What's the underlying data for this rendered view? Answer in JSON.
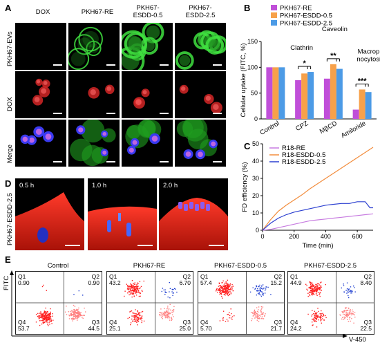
{
  "panels": {
    "A": "A",
    "B": "B",
    "C": "C",
    "D": "D",
    "E": "E"
  },
  "panelA": {
    "columns": [
      "DOX",
      "PKH67-RE",
      "PKH67-\nESDD-0.5",
      "PKH67-\nESDD-2.5"
    ],
    "rows": [
      "PKH67-EVs",
      "DOX",
      "Merge"
    ]
  },
  "panelD": {
    "side_label": "PKH67-ESDD-2.5",
    "times": [
      "0.5 h",
      "1.0 h",
      "2.0 h"
    ]
  },
  "chart_data": [
    {
      "type": "bar",
      "panel": "B",
      "categories": [
        "Control",
        "CPZ",
        "MβCD",
        "Amiloride"
      ],
      "series": [
        {
          "name": "PKH67-RE",
          "color": "#c04fd9",
          "values": [
            100,
            75,
            78,
            18
          ]
        },
        {
          "name": "PKH67-ESDD-0.5",
          "color": "#f7a14a",
          "values": [
            100,
            88,
            106,
            57
          ]
        },
        {
          "name": "PKH67-ESDD-2.5",
          "color": "#4c9be6",
          "values": [
            100,
            91,
            97,
            52
          ]
        }
      ],
      "ylabel": "Cellular uptake (FITC, %)",
      "ylim": [
        0,
        150
      ],
      "yticks": [
        0,
        50,
        100,
        150
      ],
      "annotations": [
        {
          "text": "Clathrin",
          "category": "CPZ"
        },
        {
          "text": "Caveolin",
          "category": "MβCD"
        },
        {
          "text": "Macropi-\nnocytosis",
          "category": "Amiloride"
        }
      ],
      "significance": [
        {
          "category": "CPZ",
          "stars": "*"
        },
        {
          "category": "MβCD",
          "stars": "**"
        },
        {
          "category": "Amiloride",
          "stars": "***"
        }
      ]
    },
    {
      "type": "line",
      "panel": "C",
      "xlabel": "Time (min)",
      "ylabel": "FD efficiency (%)",
      "xlim": [
        0,
        700
      ],
      "ylim": [
        0,
        50
      ],
      "xticks": [
        0,
        200,
        400,
        600
      ],
      "yticks": [
        0,
        10,
        20,
        30,
        40,
        50
      ],
      "series": [
        {
          "name": "R18-RE",
          "color": "#c77be0",
          "x": [
            0,
            50,
            100,
            150,
            200,
            250,
            300,
            350,
            400,
            450,
            500,
            550,
            600,
            650,
            700
          ],
          "y": [
            0,
            0.5,
            1.5,
            2.5,
            3.5,
            4.5,
            5.5,
            6,
            6.5,
            7,
            7.5,
            8,
            8.5,
            9,
            9.5
          ]
        },
        {
          "name": "R18-ESDD-0.5",
          "color": "#f28c3c",
          "x": [
            0,
            50,
            100,
            150,
            200,
            250,
            300,
            350,
            400,
            450,
            500,
            550,
            600,
            650,
            700
          ],
          "y": [
            0,
            6,
            11,
            14.5,
            17.5,
            20.5,
            24,
            27,
            30,
            33,
            36,
            39,
            42,
            45,
            48
          ]
        },
        {
          "name": "R18-ESDD-2.5",
          "color": "#2b3fd0",
          "x": [
            0,
            50,
            100,
            150,
            200,
            250,
            300,
            350,
            400,
            450,
            500,
            550,
            600,
            650,
            680,
            700
          ],
          "y": [
            0,
            4,
            7,
            9,
            10.5,
            11.5,
            12.5,
            13.5,
            14.5,
            15,
            15.5,
            15.5,
            16.5,
            16.5,
            13,
            13
          ]
        }
      ]
    },
    {
      "type": "scatter",
      "panel": "E",
      "xlabel": "V-450",
      "ylabel": "FITC",
      "plots": [
        {
          "title": "Control",
          "quadrants": {
            "Q1": "0.90",
            "Q2": "0.90",
            "Q3": "44.5",
            "Q4": "53.7"
          }
        },
        {
          "title": "PKH67-RE",
          "quadrants": {
            "Q1": "43.2",
            "Q2": "6.70",
            "Q3": "25.0",
            "Q4": "25.1"
          }
        },
        {
          "title": "PKH67-ESDD-0.5",
          "quadrants": {
            "Q1": "57.4",
            "Q2": "15.2",
            "Q3": "21.7",
            "Q4": "5.70"
          }
        },
        {
          "title": "PKH67-ESDD-2.5",
          "quadrants": {
            "Q1": "44.9",
            "Q2": "8.40",
            "Q3": "22.5",
            "Q4": "24.2"
          }
        }
      ]
    }
  ]
}
